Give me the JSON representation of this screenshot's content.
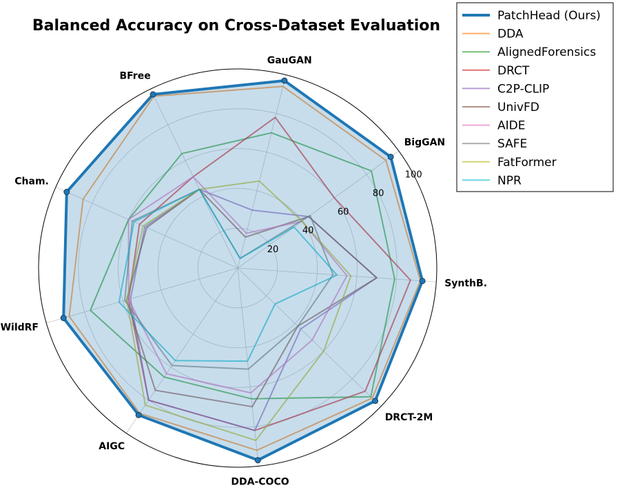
{
  "chart_data": {
    "type": "radar",
    "title": "Balanced Accuracy on Cross-Dataset Evaluation",
    "categories": [
      "SynthB.",
      "BigGAN",
      "GauGAN",
      "BFree",
      "Cham.",
      "WildRF",
      "AIGC",
      "DDA-COCO",
      "DRCT-2M"
    ],
    "rlim": [
      0,
      100
    ],
    "rticks": [
      20,
      40,
      60,
      80,
      100
    ],
    "grid": true,
    "legend_position": "top-right",
    "series": [
      {
        "name": "PatchHead (Ours)",
        "color": "#1f77b4",
        "emphasis": true,
        "values": [
          93,
          95,
          97,
          97,
          94,
          91,
          89,
          97,
          96
        ]
      },
      {
        "name": "DDA",
        "color": "#ff7f0e",
        "values": [
          92,
          92,
          94,
          96,
          85,
          88,
          88,
          92,
          94
        ]
      },
      {
        "name": "AlignedForensics",
        "color": "#2ca02c",
        "values": [
          79,
          83,
          70,
          64,
          60,
          77,
          66,
          66,
          93
        ]
      },
      {
        "name": "DRCT",
        "color": "#d62728",
        "values": [
          87,
          60,
          78,
          51,
          54,
          57,
          80,
          82,
          89
        ]
      },
      {
        "name": "C2P-CLIP",
        "color": "#9467bd",
        "values": [
          70,
          44,
          30,
          44,
          51,
          56,
          80,
          82,
          44
        ]
      },
      {
        "name": "UnivFD",
        "color": "#8c564b",
        "values": [
          70,
          44,
          16,
          44,
          50,
          58,
          74,
          70,
          42
        ]
      },
      {
        "name": "AIDE",
        "color": "#e377c2",
        "values": [
          55,
          40,
          18,
          51,
          60,
          57,
          64,
          63,
          52
        ]
      },
      {
        "name": "SAFE",
        "color": "#7f7f7f",
        "values": [
          48,
          45,
          5,
          44,
          58,
          59,
          59,
          51,
          42
        ]
      },
      {
        "name": "FatFormer",
        "color": "#bcbd22",
        "values": [
          57,
          40,
          45,
          44,
          52,
          58,
          83,
          87,
          60
        ]
      },
      {
        "name": "NPR",
        "color": "#17becf",
        "values": [
          50,
          35,
          5,
          44,
          57,
          62,
          56,
          47,
          26
        ]
      }
    ]
  }
}
